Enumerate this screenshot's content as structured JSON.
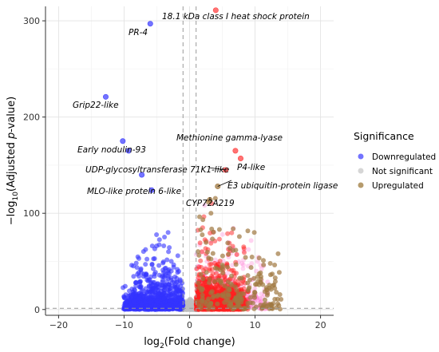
{
  "chart_data": {
    "type": "scatter",
    "xlabel": {
      "pre": "log",
      "sub": "2",
      "post": "(Fold change)"
    },
    "ylabel": {
      "pre": "−log",
      "sub": "10",
      "mid": "(Adjusted ",
      "ital": "p",
      "post": "-value)"
    },
    "xlim": [
      -22,
      22
    ],
    "ylim": [
      -6,
      315
    ],
    "x_ticks": [
      -20,
      -10,
      0,
      10,
      20
    ],
    "y_ticks": [
      0,
      100,
      200,
      300
    ],
    "grid": true,
    "vlines": [
      -1,
      1
    ],
    "hline": 1.3,
    "legend": {
      "title": "Significance",
      "position": "right",
      "entries": [
        {
          "label": "Downregulated",
          "color": "#4444ff"
        },
        {
          "label": "Not significant",
          "color": "#c8c8c8"
        },
        {
          "label": "Upregulated",
          "color": "#9e7a3c"
        }
      ]
    },
    "colors": {
      "down": "#3333ff",
      "ns": "#bdbdbd",
      "up": "#ff2020",
      "up_alt": "#a07840",
      "pink": "#ff66cc"
    },
    "highlighted_points": [
      {
        "x": -6,
        "y": 297,
        "color": "#4444ff"
      },
      {
        "x": 4,
        "y": 311,
        "color": "#ff4444"
      },
      {
        "x": -12.8,
        "y": 221,
        "color": "#4444ff"
      },
      {
        "x": -10.2,
        "y": 175,
        "color": "#4444ff"
      },
      {
        "x": -9.3,
        "y": 165,
        "color": "#4444ff"
      },
      {
        "x": 7,
        "y": 165,
        "color": "#ff4444"
      },
      {
        "x": 7.8,
        "y": 157,
        "color": "#ff4444"
      },
      {
        "x": 5.5,
        "y": 145,
        "color": "#ff4444"
      },
      {
        "x": -7.3,
        "y": 140,
        "color": "#4444ff"
      },
      {
        "x": -5.8,
        "y": 124,
        "color": "#4444ff"
      },
      {
        "x": 4.3,
        "y": 128,
        "color": "#a07840"
      },
      {
        "x": 3.1,
        "y": 114,
        "color": "#a07840"
      }
    ],
    "annotations": [
      {
        "text": "18.1 kDa class I heat shock protein",
        "x": 4,
        "y": 311
      },
      {
        "text": "PR-4",
        "x": -6,
        "y": 297
      },
      {
        "text": "Grip22-like",
        "x": -12.8,
        "y": 221
      },
      {
        "text": "Early nodulin-93",
        "x": -10.2,
        "y": 175
      },
      {
        "text": "Methionine gamma-lyase",
        "x": 7,
        "y": 165
      },
      {
        "text": "P4-like",
        "x": 7.8,
        "y": 157
      },
      {
        "text": "UDP-glycosyltransferase 71K1-like",
        "x": 5.5,
        "y": 145
      },
      {
        "text": "E3 ubiquitin-protein ligase",
        "x": 4.3,
        "y": 128
      },
      {
        "text": "MLO-like protein 6-like",
        "x": -7.3,
        "y": 140
      },
      {
        "text": "CYP72A219",
        "x": 3.1,
        "y": 114
      }
    ],
    "clouds": [
      {
        "group": "down",
        "n": 700,
        "x_range": [
          -10,
          -1
        ],
        "y_max": 55,
        "decay": 9
      },
      {
        "group": "down",
        "n": 220,
        "x_range": [
          -9,
          -3
        ],
        "y_max": 100,
        "decay": 25
      },
      {
        "group": "down",
        "n": 40,
        "x_range": [
          -11,
          -2
        ],
        "y_max": 180,
        "decay": 45
      },
      {
        "group": "ns",
        "n": 900,
        "x_range": [
          -1.5,
          1.5
        ],
        "y_max": 10,
        "decay": 2
      },
      {
        "group": "up",
        "n": 1300,
        "x_range": [
          1,
          8
        ],
        "y_max": 70,
        "decay": 10
      },
      {
        "group": "up",
        "n": 250,
        "x_range": [
          1,
          9
        ],
        "y_max": 120,
        "decay": 30
      },
      {
        "group": "up_alt",
        "n": 220,
        "x_range": [
          1,
          14
        ],
        "y_max": 120,
        "decay": 30
      },
      {
        "group": "pink",
        "n": 260,
        "x_range": [
          1,
          12
        ],
        "y_max": 110,
        "decay": 25
      }
    ]
  }
}
